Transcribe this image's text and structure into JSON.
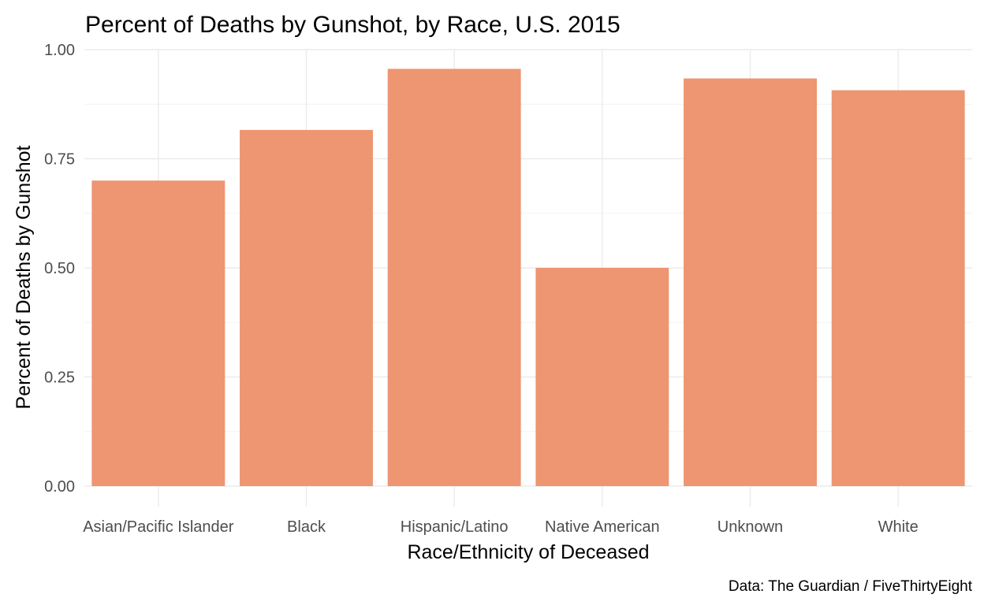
{
  "chart_data": {
    "type": "bar",
    "title": "Percent of Deaths by Gunshot, by Race, U.S. 2015",
    "xlabel": "Race/Ethnicity of Deceased",
    "ylabel": "Percent of Deaths by Gunshot",
    "caption": "Data: The Guardian / FiveThirtyEight",
    "categories": [
      "Asian/Pacific Islander",
      "Black",
      "Hispanic/Latino",
      "Native American",
      "Unknown",
      "White"
    ],
    "values": [
      0.7,
      0.816,
      0.956,
      0.5,
      0.934,
      0.907
    ],
    "ylim": [
      0,
      1.0
    ],
    "yticks": [
      0.0,
      0.25,
      0.5,
      0.75,
      1.0
    ],
    "ytick_labels": [
      "0.00",
      "0.25",
      "0.50",
      "0.75",
      "1.00"
    ],
    "grid": true,
    "bar_color": "#EE9572"
  }
}
